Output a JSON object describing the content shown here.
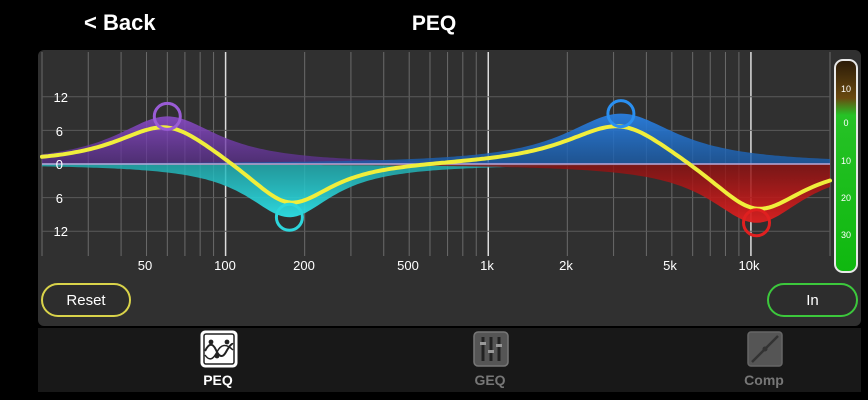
{
  "header": {
    "back_label": "< Back",
    "title": "PEQ"
  },
  "graph": {
    "y_labels": [
      "12",
      "6",
      "0",
      "6",
      "12"
    ],
    "x_labels": [
      "50",
      "100",
      "200",
      "500",
      "1k",
      "2k",
      "5k",
      "10k"
    ],
    "bands": [
      {
        "name": "band-1",
        "color": "#8a4bc7"
      },
      {
        "name": "band-2",
        "color": "#2dd6dc"
      },
      {
        "name": "band-3",
        "color": "#2a7fe0"
      },
      {
        "name": "band-4",
        "color": "#e02020"
      }
    ],
    "curve_color": "#f0ee3c"
  },
  "meter": {
    "labels": [
      "10",
      "0",
      "10",
      "20",
      "30"
    ]
  },
  "buttons": {
    "reset_label": "Reset",
    "in_label": "In"
  },
  "tabs": [
    {
      "label": "PEQ",
      "icon": "peq-icon",
      "active": true
    },
    {
      "label": "GEQ",
      "icon": "geq-icon",
      "active": false
    },
    {
      "label": "Comp",
      "icon": "comp-icon",
      "active": false
    }
  ]
}
